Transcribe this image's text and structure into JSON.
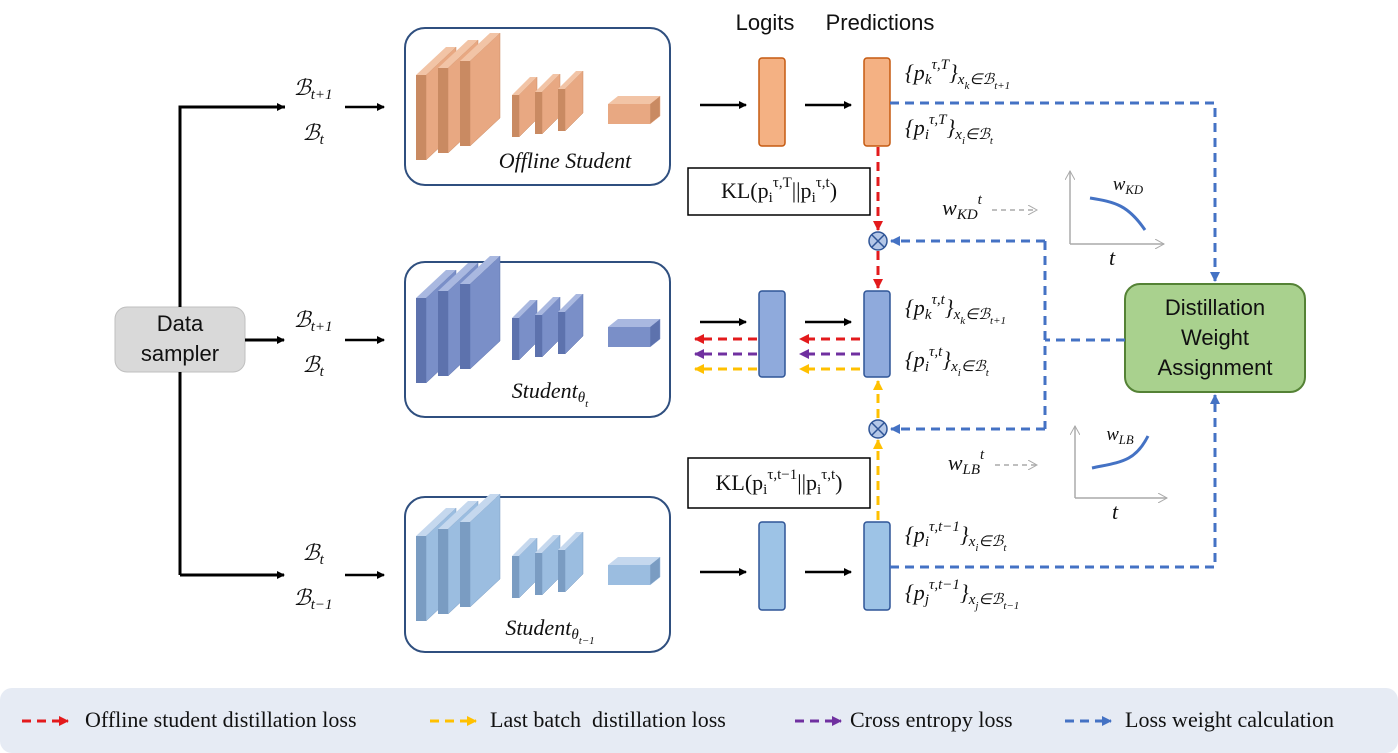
{
  "header": {
    "logits": "Logits",
    "predictions": "Predictions"
  },
  "sampler": {
    "lines": [
      "Data",
      "sampler"
    ]
  },
  "batches": [
    [
      {
        "t": "ℬ",
        "s": "n"
      },
      {
        "t": "t+1",
        "s": "sub"
      }
    ],
    [
      {
        "t": "ℬ",
        "s": "n"
      },
      {
        "t": "t",
        "s": "sub"
      }
    ],
    [
      {
        "t": "ℬ",
        "s": "n"
      },
      {
        "t": "t+1",
        "s": "sub"
      }
    ],
    [
      {
        "t": "ℬ",
        "s": "n"
      },
      {
        "t": "t",
        "s": "sub"
      }
    ],
    [
      {
        "t": "ℬ",
        "s": "n"
      },
      {
        "t": "t",
        "s": "sub"
      }
    ],
    [
      {
        "t": "ℬ",
        "s": "n"
      },
      {
        "t": "t−1",
        "s": "sub"
      }
    ]
  ],
  "students": [
    [
      {
        "t": "Offline Student",
        "s": "n"
      }
    ],
    [
      {
        "t": "Student",
        "s": "n"
      },
      {
        "t": "θ",
        "s": "sub"
      },
      {
        "t": "t",
        "s": "sub2"
      }
    ],
    [
      {
        "t": "Student",
        "s": "n"
      },
      {
        "t": "θ",
        "s": "sub"
      },
      {
        "t": "t−1",
        "s": "sub2"
      }
    ]
  ],
  "predictions": [
    [
      {
        "t": "{p",
        "s": "n"
      },
      {
        "t": "k",
        "s": "sub"
      },
      {
        "t": "τ,T",
        "s": "sup"
      },
      {
        "t": "}",
        "s": "n"
      },
      {
        "t": "x",
        "s": "sub"
      },
      {
        "t": "k",
        "s": "sub2"
      },
      {
        "t": "∈ℬ",
        "s": "sub"
      },
      {
        "t": "t+1",
        "s": "sub2"
      }
    ],
    [
      {
        "t": "{p",
        "s": "n"
      },
      {
        "t": "i",
        "s": "sub"
      },
      {
        "t": "τ,T",
        "s": "sup"
      },
      {
        "t": "}",
        "s": "n"
      },
      {
        "t": "x",
        "s": "sub"
      },
      {
        "t": "i",
        "s": "sub2"
      },
      {
        "t": "∈ℬ",
        "s": "sub"
      },
      {
        "t": "t",
        "s": "sub2"
      }
    ],
    [
      {
        "t": "{p",
        "s": "n"
      },
      {
        "t": "k",
        "s": "sub"
      },
      {
        "t": "τ,t",
        "s": "sup"
      },
      {
        "t": "}",
        "s": "n"
      },
      {
        "t": "x",
        "s": "sub"
      },
      {
        "t": "k",
        "s": "sub2"
      },
      {
        "t": "∈ℬ",
        "s": "sub"
      },
      {
        "t": "t+1",
        "s": "sub2"
      }
    ],
    [
      {
        "t": "{p",
        "s": "n"
      },
      {
        "t": "i",
        "s": "sub"
      },
      {
        "t": "τ,t",
        "s": "sup"
      },
      {
        "t": "}",
        "s": "n"
      },
      {
        "t": "x",
        "s": "sub"
      },
      {
        "t": "i",
        "s": "sub2"
      },
      {
        "t": "∈ℬ",
        "s": "sub"
      },
      {
        "t": "t",
        "s": "sub2"
      }
    ],
    [
      {
        "t": "{p",
        "s": "n"
      },
      {
        "t": "i",
        "s": "sub"
      },
      {
        "t": "τ,t−1",
        "s": "sup"
      },
      {
        "t": "}",
        "s": "n"
      },
      {
        "t": "x",
        "s": "sub"
      },
      {
        "t": "i",
        "s": "sub2"
      },
      {
        "t": "∈ℬ",
        "s": "sub"
      },
      {
        "t": "t",
        "s": "sub2"
      }
    ],
    [
      {
        "t": "{p",
        "s": "n"
      },
      {
        "t": "j",
        "s": "sub"
      },
      {
        "t": "τ,t−1",
        "s": "sup"
      },
      {
        "t": "}",
        "s": "n"
      },
      {
        "t": "x",
        "s": "sub"
      },
      {
        "t": "j",
        "s": "sub2"
      },
      {
        "t": "∈ℬ",
        "s": "sub"
      },
      {
        "t": "t−1",
        "s": "sub2"
      }
    ]
  ],
  "kl": [
    [
      {
        "t": "KL(p",
        "s": "n"
      },
      {
        "t": "i",
        "s": "sub"
      },
      {
        "t": "τ,T",
        "s": "sup"
      },
      {
        "t": "||p",
        "s": "n"
      },
      {
        "t": "i",
        "s": "sub"
      },
      {
        "t": "τ,t",
        "s": "sup"
      },
      {
        "t": ")",
        "s": "n"
      }
    ],
    [
      {
        "t": "KL(p",
        "s": "n"
      },
      {
        "t": "i",
        "s": "sub"
      },
      {
        "t": "τ,t−1",
        "s": "sup"
      },
      {
        "t": "||p",
        "s": "n"
      },
      {
        "t": "i",
        "s": "sub"
      },
      {
        "t": "τ,t",
        "s": "sup"
      },
      {
        "t": ")",
        "s": "n"
      }
    ]
  ],
  "weights": [
    {
      "label": [
        {
          "t": "w",
          "s": "n"
        },
        {
          "t": "KD",
          "s": "sub"
        },
        {
          "t": "t",
          "s": "sup"
        }
      ],
      "curve": [
        {
          "t": "w",
          "s": "n"
        },
        {
          "t": "KD",
          "s": "sub"
        }
      ],
      "axis": "t"
    },
    {
      "label": [
        {
          "t": "w",
          "s": "n"
        },
        {
          "t": "LB",
          "s": "sub"
        },
        {
          "t": "t",
          "s": "sup"
        }
      ],
      "curve": [
        {
          "t": "w",
          "s": "n"
        },
        {
          "t": "LB",
          "s": "sub"
        }
      ],
      "axis": "t"
    }
  ],
  "assignment": {
    "lines": [
      "Distillation",
      "Weight",
      "Assignment"
    ]
  },
  "legend": [
    {
      "label": "Offline student distillation loss",
      "color": "#e31a1c"
    },
    {
      "label": "Last batch  distillation loss",
      "color": "#ffc000"
    },
    {
      "label": "Cross entropy loss",
      "color": "#7030a0"
    },
    {
      "label": "Loss weight calculation",
      "color": "#4472c4"
    }
  ]
}
